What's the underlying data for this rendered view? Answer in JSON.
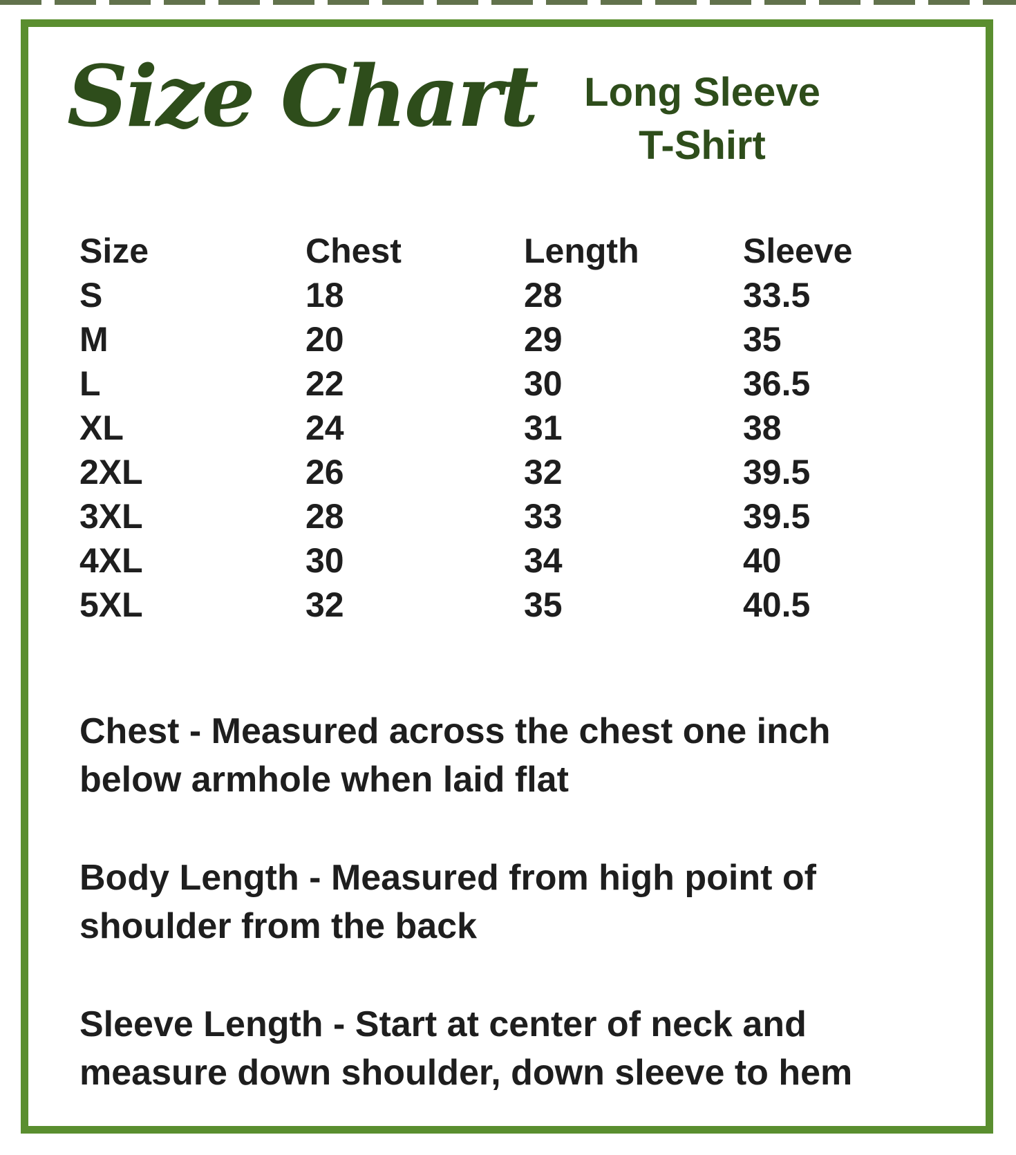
{
  "header": {
    "title": "Size Chart",
    "product": {
      "line1": "Long Sleeve",
      "line2": "T-Shirt"
    }
  },
  "chart_data": {
    "type": "table",
    "title": "Size Chart",
    "subtitle": "Long Sleeve T-Shirt",
    "columns": [
      "Size",
      "Chest",
      "Length",
      "Sleeve"
    ],
    "rows": [
      [
        "S",
        "18",
        "28",
        "33.5"
      ],
      [
        "M",
        "20",
        "29",
        "35"
      ],
      [
        "L",
        "22",
        "30",
        "36.5"
      ],
      [
        "XL",
        "24",
        "31",
        "38"
      ],
      [
        "2XL",
        "26",
        "32",
        "39.5"
      ],
      [
        "3XL",
        "28",
        "33",
        "39.5"
      ],
      [
        "4XL",
        "30",
        "34",
        "40"
      ],
      [
        "5XL",
        "32",
        "35",
        "40.5"
      ]
    ]
  },
  "notes": [
    {
      "line1": "Chest - Measured across the chest one inch",
      "line2": "below armhole when laid flat"
    },
    {
      "line1": "Body Length - Measured from high point of",
      "line2": "shoulder from the back"
    },
    {
      "line1": "Sleeve Length - Start at center of neck and",
      "line2": "measure down shoulder, down sleeve to hem"
    }
  ],
  "colors": {
    "frame_green": "#5a8e2f",
    "heading_green": "#2e4d1b",
    "text_black": "#1e1e1e"
  }
}
